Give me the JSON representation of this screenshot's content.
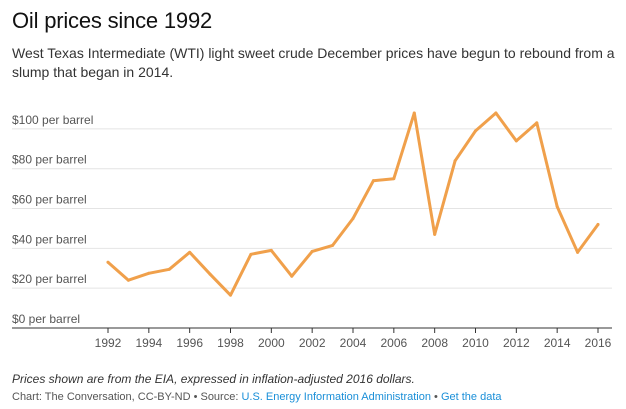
{
  "title": "Oil prices since 1992",
  "subtitle": "West Texas Intermediate (WTI) light sweet crude December prices have begun to rebound from a slump that began in 2014.",
  "note": "Prices shown are from the EIA, expressed in inflation-adjusted 2016 dollars.",
  "credit": {
    "prefix": "Chart: The Conversation, CC-BY-ND • Source: ",
    "source_link": "U.S. Energy Information Administration",
    "separator": " • ",
    "data_link": "Get the data"
  },
  "colors": {
    "line": "#f0a04b",
    "grid": "#e4e4e4",
    "axis": "#333333",
    "link": "#1a8fd8"
  },
  "chart_data": {
    "type": "line",
    "title": "Oil prices since 1992",
    "xlabel": "",
    "ylabel": "",
    "xlim": [
      1992,
      2016
    ],
    "ylim": [
      0,
      110
    ],
    "y_ticks": [
      0,
      20,
      40,
      60,
      80,
      100
    ],
    "y_tick_labels": [
      "$0 per barrel",
      "$20 per barrel",
      "$40 per barrel",
      "$60 per barrel",
      "$80 per barrel",
      "$100 per barrel"
    ],
    "x_ticks": [
      1992,
      1994,
      1996,
      1998,
      2000,
      2002,
      2004,
      2006,
      2008,
      2010,
      2012,
      2014,
      2016
    ],
    "x_tick_labels": [
      "1992",
      "1994",
      "1996",
      "1998",
      "2000",
      "2002",
      "2004",
      "2006",
      "2008",
      "2010",
      "2012",
      "2014",
      "2016"
    ],
    "grid": true,
    "series": [
      {
        "x": [
          1992,
          1993,
          1994,
          1995,
          1996,
          1997,
          1998,
          1999,
          2000,
          2001,
          2002,
          2003,
          2004,
          2005,
          2006,
          2007,
          2008,
          2009,
          2010,
          2011,
          2012,
          2013,
          2014,
          2015,
          2016
        ],
        "values": [
          33,
          24,
          27.5,
          29.5,
          38,
          27,
          16.5,
          37,
          39,
          26,
          38.5,
          41.5,
          55,
          74,
          75,
          108,
          47,
          84,
          99,
          108,
          94,
          103,
          61,
          38,
          52
        ]
      }
    ]
  }
}
